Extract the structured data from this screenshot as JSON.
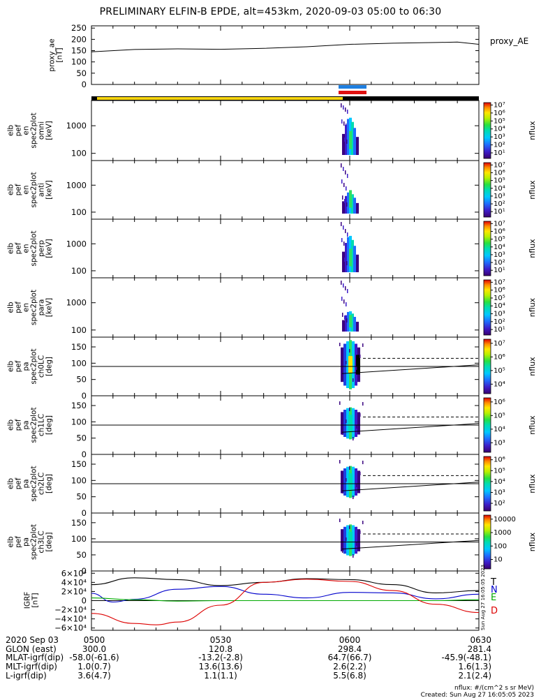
{
  "title": "PRELIMINARY ELFIN-B EPDE, alt=453km, 2020-09-03 05:00 to 06:30",
  "chart_data": [
    {
      "type": "line",
      "ylabel": "proxy_ae [nT]",
      "series_label": "proxy_AE",
      "yticks": [
        "250",
        "200",
        "150",
        "100",
        "50",
        "0"
      ],
      "ylim": [
        0,
        260
      ],
      "x_time_range": [
        "05:00",
        "06:30"
      ],
      "series": [
        {
          "x": [
            "05:00",
            "05:10",
            "05:20",
            "05:30",
            "05:40",
            "05:50",
            "06:00",
            "06:10",
            "06:20",
            "06:25",
            "06:30"
          ],
          "values": [
            145,
            155,
            158,
            156,
            160,
            167,
            178,
            183,
            186,
            188,
            178
          ]
        }
      ]
    },
    {
      "type": "heatmap",
      "ylabel": [
        "elb",
        "pef",
        "en",
        "spec2plot",
        "omni",
        "[keV]"
      ],
      "yticks": [
        "1000",
        "100"
      ],
      "colorbar_ticks": [
        "10⁷",
        "10⁶",
        "10⁵",
        "10⁴",
        "10³",
        "10²",
        "10¹"
      ],
      "colorbar_label": "nflux",
      "yscale": "log"
    },
    {
      "type": "heatmap",
      "ylabel": [
        "elb",
        "pef",
        "en",
        "spec2plot",
        "anti",
        "[keV]"
      ],
      "yticks": [
        "1000",
        "100"
      ],
      "colorbar_ticks": [
        "10⁷",
        "10⁶",
        "10⁵",
        "10⁴",
        "10³",
        "10²",
        "10¹"
      ],
      "colorbar_label": "nflux",
      "yscale": "log"
    },
    {
      "type": "heatmap",
      "ylabel": [
        "elb",
        "pef",
        "en",
        "spec2plot",
        "perp",
        "[keV]"
      ],
      "yticks": [
        "1000",
        "100"
      ],
      "colorbar_ticks": [
        "10⁷",
        "10⁶",
        "10⁵",
        "10⁴",
        "10³",
        "10²",
        "10¹"
      ],
      "colorbar_label": "nflux",
      "yscale": "log"
    },
    {
      "type": "heatmap",
      "ylabel": [
        "elb",
        "pef",
        "en",
        "spec2plot",
        "para",
        "[keV]"
      ],
      "yticks": [
        "1000",
        "100"
      ],
      "colorbar_ticks": [
        "10⁷",
        "10⁶",
        "10⁵",
        "10⁴",
        "10³",
        "10²",
        "10¹"
      ],
      "colorbar_label": "nflux",
      "yscale": "log"
    },
    {
      "type": "heatmap",
      "ylabel": [
        "elb",
        "pef",
        "pa",
        "spec2plot",
        "ch0LC",
        "[deg]"
      ],
      "yticks": [
        "150",
        "100",
        "50",
        "0"
      ],
      "colorbar_ticks": [
        "10⁷",
        "10⁶",
        "10⁵",
        "10⁴"
      ],
      "colorbar_label": "nflux"
    },
    {
      "type": "heatmap",
      "ylabel": [
        "elb",
        "pef",
        "pa",
        "spec2plot",
        "ch1LC",
        "[deg]"
      ],
      "yticks": [
        "150",
        "100",
        "50",
        "0"
      ],
      "colorbar_ticks": [
        "10⁶",
        "10⁵",
        "10⁴",
        "10³"
      ],
      "colorbar_label": "nflux"
    },
    {
      "type": "heatmap",
      "ylabel": [
        "elb",
        "pef",
        "pa",
        "spec2plot",
        "ch2LC",
        "[deg]"
      ],
      "yticks": [
        "150",
        "100",
        "50",
        "0"
      ],
      "colorbar_ticks": [
        "10⁶",
        "10⁵",
        "10⁴",
        "10³",
        "10²"
      ],
      "colorbar_label": "nflux"
    },
    {
      "type": "heatmap",
      "ylabel": [
        "elb",
        "pef",
        "pa",
        "spec2plot",
        "ch3LC",
        "[deg]"
      ],
      "yticks": [
        "150",
        "100",
        "50",
        "0"
      ],
      "colorbar_ticks": [
        "10000",
        "1000",
        "100",
        "10"
      ],
      "colorbar_label": "nflux"
    },
    {
      "type": "line",
      "ylabel": "IGRF [nT]",
      "yticks": [
        "6×10⁴",
        "4×10⁴",
        "2×10⁴",
        "0",
        "−2×10⁴",
        "−4×10⁴",
        "−6×10⁴"
      ],
      "ylim": [
        -65000,
        65000
      ],
      "legend": [
        "T",
        "N",
        "E",
        "D"
      ],
      "side_note": "Sun Aug 27 16:05:05 2023",
      "series": [
        {
          "name": "T",
          "color": "#000000",
          "x": [
            "05:00",
            "05:10",
            "05:20",
            "05:30",
            "05:40",
            "05:50",
            "06:00",
            "06:10",
            "06:20",
            "06:30"
          ],
          "values": [
            35000,
            50000,
            46000,
            33000,
            40000,
            48000,
            46000,
            35000,
            17000,
            22000
          ]
        },
        {
          "name": "N",
          "color": "#0000cc",
          "x": [
            "05:00",
            "05:05",
            "05:10",
            "05:20",
            "05:30",
            "05:40",
            "05:50",
            "06:00",
            "06:10",
            "06:20",
            "06:30"
          ],
          "values": [
            16000,
            -3000,
            3000,
            25000,
            31000,
            14000,
            6000,
            18000,
            17000,
            4000,
            14000
          ]
        },
        {
          "name": "E",
          "color": "#00aa00",
          "x": [
            "05:00",
            "05:10",
            "05:20",
            "05:30",
            "05:40",
            "05:50",
            "06:00",
            "06:10",
            "06:20",
            "06:30"
          ],
          "values": [
            6000,
            2000,
            -1000,
            0,
            0,
            0,
            0,
            0,
            0,
            2000
          ]
        },
        {
          "name": "D",
          "color": "#dd0000",
          "x": [
            "05:00",
            "05:10",
            "05:15",
            "05:20",
            "05:30",
            "05:40",
            "05:50",
            "06:00",
            "06:10",
            "06:20",
            "06:30"
          ],
          "values": [
            -28000,
            -50000,
            -53000,
            -47000,
            -10000,
            40000,
            47000,
            42000,
            22000,
            -8000,
            -26000
          ]
        }
      ]
    }
  ],
  "x_axis": {
    "ticks": [
      "0500",
      "0530",
      "0600",
      "0630"
    ],
    "rows": [
      {
        "label": "2020 Sep 03",
        "values": [
          "0500",
          "0530",
          "0600",
          "0630"
        ]
      },
      {
        "label": "GLON (east)",
        "values": [
          "300.0",
          "120.8",
          "298.4",
          "281.4"
        ]
      },
      {
        "label": "MLAT-igrf(dip)",
        "values": [
          "-58.0(-61.6)",
          "-13.2(-2.8)",
          "64.7(66.7)",
          "-45.9(-48.1)"
        ]
      },
      {
        "label": "MLT-igrf(dip)",
        "values": [
          "1.0(0.7)",
          "13.6(13.6)",
          "2.6(2.2)",
          "1.6(1.3)"
        ]
      },
      {
        "label": "L-igrf(dip)",
        "values": [
          "3.6(4.7)",
          "1.1(1.1)",
          "5.5(6.8)",
          "2.1(2.4)"
        ]
      }
    ]
  },
  "footer": {
    "units": "nflux: #/(cm^2 s sr MeV)",
    "created": "Created: Sun Aug 27 16:05:05 2023"
  }
}
